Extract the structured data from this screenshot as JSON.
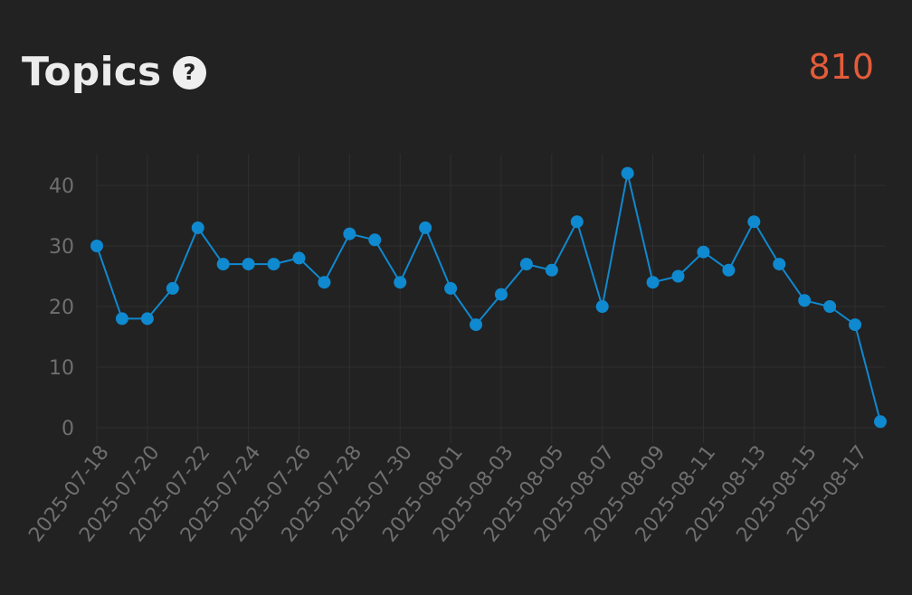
{
  "header": {
    "title": "Topics",
    "help_icon": "question-mark-icon",
    "total": "810"
  },
  "colors": {
    "background": "#222222",
    "accent_total": "#e45c3a",
    "series_line": "#0f89cf",
    "grid": "#2f2f2f",
    "tick_text": "#6f6f6f"
  },
  "chart_data": {
    "type": "line",
    "title": "",
    "xlabel": "",
    "ylabel": "",
    "ylim": [
      0,
      45
    ],
    "yticks": [
      0,
      10,
      20,
      30,
      40
    ],
    "grid": true,
    "x": [
      "2025-07-18",
      "2025-07-19",
      "2025-07-20",
      "2025-07-21",
      "2025-07-22",
      "2025-07-23",
      "2025-07-24",
      "2025-07-25",
      "2025-07-26",
      "2025-07-27",
      "2025-07-28",
      "2025-07-29",
      "2025-07-30",
      "2025-07-31",
      "2025-08-01",
      "2025-08-02",
      "2025-08-03",
      "2025-08-04",
      "2025-08-05",
      "2025-08-06",
      "2025-08-07",
      "2025-08-08",
      "2025-08-09",
      "2025-08-10",
      "2025-08-11",
      "2025-08-12",
      "2025-08-13",
      "2025-08-14",
      "2025-08-15",
      "2025-08-16",
      "2025-08-17",
      "2025-08-18"
    ],
    "xtick_labels": [
      "2025-07-18",
      "2025-07-20",
      "2025-07-22",
      "2025-07-24",
      "2025-07-26",
      "2025-07-28",
      "2025-07-30",
      "2025-08-01",
      "2025-08-03",
      "2025-08-05",
      "2025-08-07",
      "2025-08-09",
      "2025-08-11",
      "2025-08-13",
      "2025-08-15",
      "2025-08-17"
    ],
    "series": [
      {
        "values": [
          30,
          18,
          18,
          23,
          33,
          27,
          27,
          27,
          28,
          24,
          32,
          31,
          24,
          33,
          23,
          17,
          22,
          27,
          26,
          34,
          20,
          42,
          24,
          25,
          29,
          26,
          34,
          27,
          21,
          20,
          17,
          1
        ]
      }
    ]
  }
}
